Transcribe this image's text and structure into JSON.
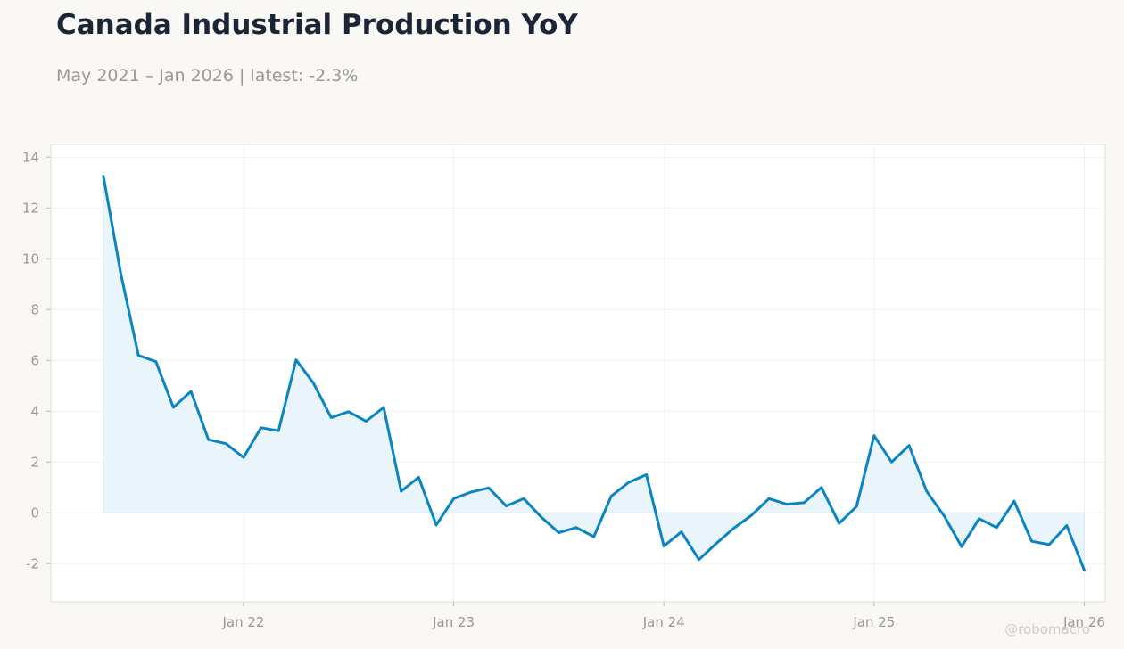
{
  "title": "Canada Industrial Production YoY",
  "subtitle": "May 2021 – Jan 2026 | latest: -2.3%",
  "watermark": "@robomacro",
  "colors": {
    "line": "#0a85c2",
    "fill": "#e9f4fb",
    "background": "#f9f8f5",
    "plot_background": "#ffffff",
    "grid": "#eeeeee"
  },
  "chart_data": {
    "type": "area",
    "title": "Canada Industrial Production YoY",
    "xlabel": "",
    "ylabel": "",
    "ylim": [
      -3.5,
      14.5
    ],
    "grid": true,
    "y_ticks": [
      -2,
      0,
      2,
      4,
      6,
      8,
      10,
      12,
      14
    ],
    "x_ticks": [
      {
        "date": "2022-01",
        "label": "Jan 22"
      },
      {
        "date": "2023-01",
        "label": "Jan 23"
      },
      {
        "date": "2024-01",
        "label": "Jan 24"
      },
      {
        "date": "2025-01",
        "label": "Jan 25"
      },
      {
        "date": "2026-01",
        "label": "Jan 26"
      }
    ],
    "x": [
      "2021-05",
      "2021-06",
      "2021-07",
      "2021-08",
      "2021-09",
      "2021-10",
      "2021-11",
      "2021-12",
      "2022-01",
      "2022-02",
      "2022-03",
      "2022-04",
      "2022-05",
      "2022-06",
      "2022-07",
      "2022-08",
      "2022-09",
      "2022-10",
      "2022-11",
      "2022-12",
      "2023-01",
      "2023-02",
      "2023-03",
      "2023-04",
      "2023-05",
      "2023-06",
      "2023-07",
      "2023-08",
      "2023-09",
      "2023-10",
      "2023-11",
      "2023-12",
      "2024-01",
      "2024-02",
      "2024-03",
      "2024-04",
      "2024-05",
      "2024-06",
      "2024-07",
      "2024-08",
      "2024-09",
      "2024-10",
      "2024-11",
      "2024-12",
      "2025-01",
      "2025-02",
      "2025-03",
      "2025-04",
      "2025-05",
      "2025-06",
      "2025-07",
      "2025-08",
      "2025-09",
      "2025-10",
      "2025-11",
      "2025-12",
      "2026-01"
    ],
    "series": [
      {
        "values": [
          13.25,
          9.4,
          6.2,
          5.95,
          4.15,
          4.78,
          2.88,
          2.72,
          2.18,
          3.35,
          3.23,
          6.02,
          5.1,
          3.75,
          3.98,
          3.6,
          4.15,
          0.85,
          1.4,
          -0.48,
          0.56,
          0.82,
          0.98,
          0.27,
          0.56,
          -0.17,
          -0.78,
          -0.58,
          -0.94,
          0.66,
          1.2,
          1.5,
          -1.31,
          -0.75,
          -1.84,
          -1.2,
          -0.6,
          -0.1,
          0.56,
          0.34,
          0.4,
          1.0,
          -0.42,
          0.25,
          3.04,
          2.0,
          2.65,
          0.85,
          -0.12,
          -1.33,
          -0.23,
          -0.58,
          0.46,
          -1.12,
          -1.25,
          -0.5,
          -2.25
        ]
      }
    ]
  }
}
